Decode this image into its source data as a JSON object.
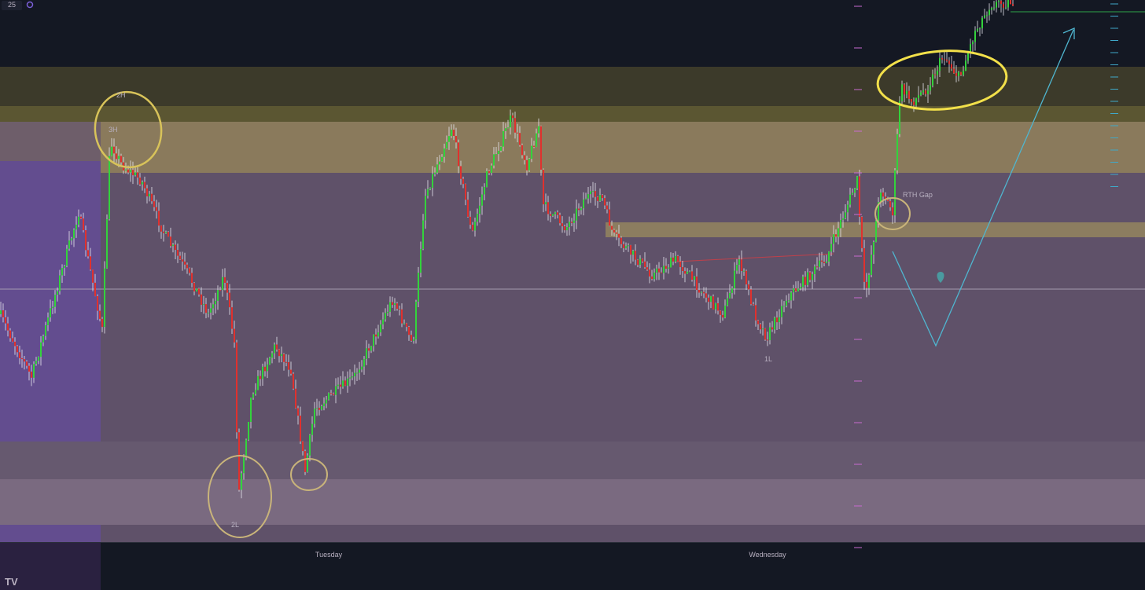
{
  "toolbar": {
    "interval": "25"
  },
  "labels": {
    "three_high": "3H",
    "two_high": "2H",
    "two_low": "2L",
    "one_low": "1L",
    "gap": "RTH Gap"
  },
  "x_axis": [
    "Tuesday",
    "Wednesday"
  ]
}
